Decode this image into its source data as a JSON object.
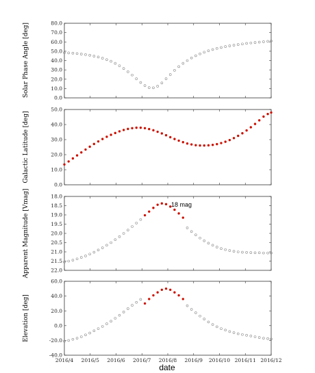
{
  "colors": {
    "open_marker": "#8a8a8a",
    "filled_marker": "#cc1100",
    "frame": "#333333"
  },
  "xlabel": "date",
  "x_tick_labels": [
    "2016/4",
    "2016/5",
    "2016/6",
    "2016/7",
    "2016/8",
    "2016/9",
    "2016/10",
    "2016/11",
    "2016/12"
  ],
  "chart_data": [
    {
      "type": "scatter",
      "title": "",
      "xlabel": "date",
      "ylabel": "Solar Phase Angle [deg]",
      "xlim": [
        "2016-04-01",
        "2016-12-01"
      ],
      "ylim": [
        0,
        80
      ],
      "y_inverted": false,
      "y_ticks": [
        "0.0",
        "10.0",
        "20.0",
        "30.0",
        "40.0",
        "50.0",
        "60.0",
        "70.0",
        "80.0"
      ],
      "grid": false,
      "legend": "none",
      "series": [
        {
          "marker": "open-circle",
          "x": [
            "2016-04-01",
            "2016-04-06",
            "2016-04-11",
            "2016-04-16",
            "2016-04-21",
            "2016-04-26",
            "2016-05-01",
            "2016-05-06",
            "2016-05-11",
            "2016-05-16",
            "2016-05-21",
            "2016-05-26",
            "2016-05-31",
            "2016-06-05",
            "2016-06-10",
            "2016-06-15",
            "2016-06-20",
            "2016-06-25",
            "2016-06-30",
            "2016-07-05",
            "2016-07-10",
            "2016-07-15",
            "2016-07-20",
            "2016-07-25",
            "2016-07-30",
            "2016-08-04",
            "2016-08-09",
            "2016-08-14",
            "2016-08-19",
            "2016-08-24",
            "2016-08-29",
            "2016-09-03",
            "2016-09-08",
            "2016-09-13",
            "2016-09-18",
            "2016-09-23",
            "2016-09-28",
            "2016-10-03",
            "2016-10-08",
            "2016-10-13",
            "2016-10-18",
            "2016-10-23",
            "2016-10-28",
            "2016-11-02",
            "2016-11-07",
            "2016-11-12",
            "2016-11-17",
            "2016-11-22",
            "2016-11-27",
            "2016-12-01"
          ],
          "y": [
            48.4,
            48.2,
            47.9,
            47.5,
            47.0,
            46.4,
            45.7,
            44.8,
            43.8,
            42.5,
            41.0,
            39.2,
            37.0,
            34.5,
            31.5,
            28.0,
            24.5,
            20.5,
            16.5,
            13.2,
            11.0,
            10.8,
            12.5,
            16.0,
            20.5,
            25.0,
            29.5,
            33.5,
            37.0,
            40.0,
            42.8,
            45.2,
            47.2,
            49.0,
            50.5,
            51.8,
            53.0,
            54.0,
            55.0,
            55.8,
            56.5,
            57.2,
            57.8,
            58.4,
            58.9,
            59.4,
            59.8,
            60.2,
            60.6,
            61.0
          ]
        }
      ]
    },
    {
      "type": "scatter",
      "title": "",
      "xlabel": "date",
      "ylabel": "Galactic Latitude [deg]",
      "xlim": [
        "2016-04-01",
        "2016-12-01"
      ],
      "ylim": [
        0,
        50
      ],
      "y_inverted": false,
      "y_ticks": [
        "0.0",
        "10.0",
        "20.0",
        "30.0",
        "40.0",
        "50.0"
      ],
      "grid": false,
      "legend": "none",
      "series": [
        {
          "marker": "filled-circle",
          "x": [
            "2016-04-01",
            "2016-04-06",
            "2016-04-11",
            "2016-04-16",
            "2016-04-21",
            "2016-04-26",
            "2016-05-01",
            "2016-05-06",
            "2016-05-11",
            "2016-05-16",
            "2016-05-21",
            "2016-05-26",
            "2016-05-31",
            "2016-06-05",
            "2016-06-10",
            "2016-06-15",
            "2016-06-20",
            "2016-06-25",
            "2016-06-30",
            "2016-07-05",
            "2016-07-10",
            "2016-07-15",
            "2016-07-20",
            "2016-07-25",
            "2016-07-30",
            "2016-08-04",
            "2016-08-09",
            "2016-08-14",
            "2016-08-19",
            "2016-08-24",
            "2016-08-29",
            "2016-09-03",
            "2016-09-08",
            "2016-09-13",
            "2016-09-18",
            "2016-09-23",
            "2016-09-28",
            "2016-10-03",
            "2016-10-08",
            "2016-10-13",
            "2016-10-18",
            "2016-10-23",
            "2016-10-28",
            "2016-11-02",
            "2016-11-07",
            "2016-11-12",
            "2016-11-17",
            "2016-11-22",
            "2016-11-27",
            "2016-12-01"
          ],
          "y": [
            13.5,
            15.5,
            17.5,
            19.5,
            21.5,
            23.4,
            25.3,
            27.1,
            28.8,
            30.4,
            31.9,
            33.2,
            34.4,
            35.5,
            36.4,
            37.1,
            37.6,
            37.9,
            37.9,
            37.6,
            37.0,
            36.2,
            35.2,
            34.1,
            32.9,
            31.6,
            30.4,
            29.3,
            28.3,
            27.4,
            26.8,
            26.3,
            26.1,
            26.1,
            26.2,
            26.5,
            27.0,
            27.7,
            28.6,
            29.7,
            31.0,
            32.5,
            34.2,
            36.1,
            38.2,
            40.4,
            42.8,
            45.3,
            47.0,
            48.0
          ]
        }
      ]
    },
    {
      "type": "scatter",
      "title": "",
      "xlabel": "date",
      "ylabel": "Apparent Magnitude [Vmag]",
      "xlim": [
        "2016-04-01",
        "2016-12-01"
      ],
      "ylim": [
        22.0,
        18.0
      ],
      "y_inverted": true,
      "y_ticks": [
        "18.0",
        "18.5",
        "19.0",
        "19.5",
        "20.0",
        "20.5",
        "21.0",
        "21.5",
        "22.0"
      ],
      "grid": false,
      "legend": "none",
      "annotations": [
        "18 mag"
      ],
      "series": [
        {
          "marker": "open-circle",
          "x": [
            "2016-04-01",
            "2016-04-06",
            "2016-04-11",
            "2016-04-16",
            "2016-04-21",
            "2016-04-26",
            "2016-05-01",
            "2016-05-06",
            "2016-05-11",
            "2016-05-16",
            "2016-05-21",
            "2016-05-26",
            "2016-05-31",
            "2016-06-05",
            "2016-06-10",
            "2016-06-15",
            "2016-06-20",
            "2016-06-25",
            "2016-06-30",
            "2016-08-24",
            "2016-08-29",
            "2016-09-03",
            "2016-09-08",
            "2016-09-13",
            "2016-09-18",
            "2016-09-23",
            "2016-09-28",
            "2016-10-03",
            "2016-10-08",
            "2016-10-13",
            "2016-10-18",
            "2016-10-23",
            "2016-10-28",
            "2016-11-02",
            "2016-11-07",
            "2016-11-12",
            "2016-11-17",
            "2016-11-22",
            "2016-11-27",
            "2016-12-01"
          ],
          "y": [
            21.55,
            21.5,
            21.45,
            21.38,
            21.3,
            21.22,
            21.12,
            21.02,
            20.9,
            20.78,
            20.64,
            20.5,
            20.34,
            20.18,
            20.0,
            19.82,
            19.63,
            19.44,
            19.25,
            19.7,
            19.9,
            20.08,
            20.25,
            20.4,
            20.53,
            20.64,
            20.74,
            20.82,
            20.88,
            20.93,
            20.97,
            21.0,
            21.02,
            21.03,
            21.04,
            21.05,
            21.05,
            21.06,
            21.06,
            21.06
          ]
        },
        {
          "marker": "filled-circle",
          "x": [
            "2016-07-05",
            "2016-07-10",
            "2016-07-15",
            "2016-07-20",
            "2016-07-25",
            "2016-07-30",
            "2016-08-04",
            "2016-08-09",
            "2016-08-14",
            "2016-08-19"
          ],
          "y": [
            19.02,
            18.82,
            18.62,
            18.45,
            18.38,
            18.42,
            18.55,
            18.72,
            18.92,
            19.15
          ]
        }
      ]
    },
    {
      "type": "scatter",
      "title": "",
      "xlabel": "date",
      "ylabel": "Elevation [deg]",
      "xlim": [
        "2016-04-01",
        "2016-12-01"
      ],
      "ylim": [
        -40,
        60
      ],
      "y_inverted": false,
      "y_ticks": [
        "-40.0",
        "-20.0",
        "0.0",
        "20.0",
        "40.0",
        "60.0"
      ],
      "grid": false,
      "legend": "none",
      "series": [
        {
          "marker": "open-circle",
          "x": [
            "2016-04-01",
            "2016-04-06",
            "2016-04-11",
            "2016-04-16",
            "2016-04-21",
            "2016-04-26",
            "2016-05-01",
            "2016-05-06",
            "2016-05-11",
            "2016-05-16",
            "2016-05-21",
            "2016-05-26",
            "2016-05-31",
            "2016-06-05",
            "2016-06-10",
            "2016-06-15",
            "2016-06-20",
            "2016-06-25",
            "2016-06-30",
            "2016-08-24",
            "2016-08-29",
            "2016-09-03",
            "2016-09-08",
            "2016-09-13",
            "2016-09-18",
            "2016-09-23",
            "2016-09-28",
            "2016-10-03",
            "2016-10-08",
            "2016-10-13",
            "2016-10-18",
            "2016-10-23",
            "2016-10-28",
            "2016-11-02",
            "2016-11-07",
            "2016-11-12",
            "2016-11-17",
            "2016-11-22",
            "2016-11-27",
            "2016-12-01"
          ],
          "y": [
            -21,
            -20,
            -18.5,
            -17,
            -15,
            -12.5,
            -10,
            -7,
            -4,
            -1,
            2.5,
            6,
            10,
            14,
            18.5,
            23,
            27.5,
            31.5,
            35.5,
            27,
            22,
            17.5,
            13,
            9,
            5,
            1.5,
            -1.5,
            -4,
            -6,
            -8,
            -9.5,
            -11,
            -12,
            -13,
            -14,
            -15,
            -16,
            -17,
            -17.5,
            -18
          ]
        },
        {
          "marker": "filled-circle",
          "x": [
            "2016-07-05",
            "2016-07-10",
            "2016-07-15",
            "2016-07-20",
            "2016-07-25",
            "2016-07-30",
            "2016-08-04",
            "2016-08-09",
            "2016-08-14",
            "2016-08-19"
          ],
          "y": [
            30,
            36,
            41,
            45,
            48.5,
            50,
            48.5,
            45,
            41,
            36
          ]
        }
      ]
    }
  ]
}
